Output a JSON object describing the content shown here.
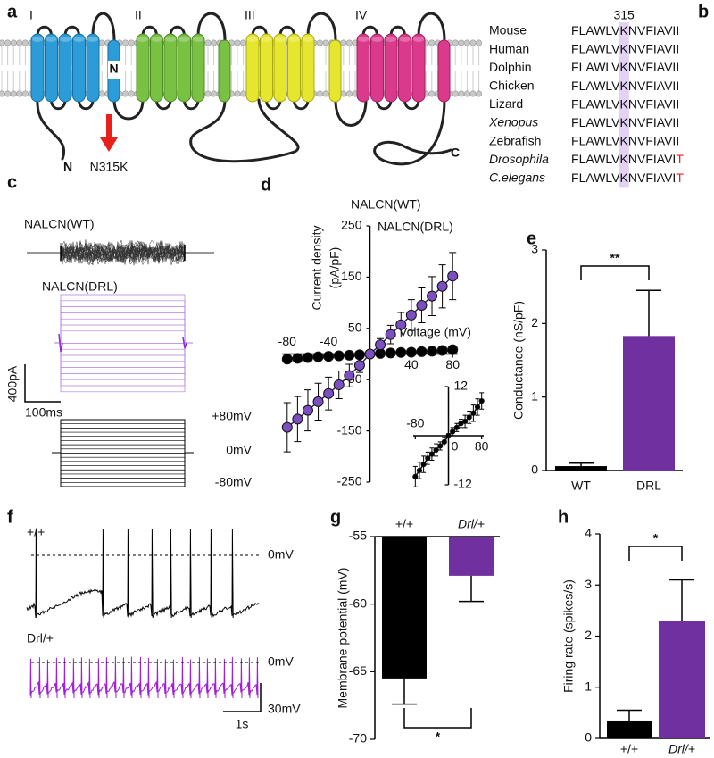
{
  "panel_letters": [
    "a",
    "b",
    "c",
    "d",
    "e",
    "f",
    "g",
    "h"
  ],
  "topology": {
    "domains": [
      "I",
      "II",
      "III",
      "IV"
    ],
    "n_terminus": "N",
    "c_terminus": "C",
    "pore_label": "N",
    "mutation": "N315K"
  },
  "alignment": {
    "position": "315",
    "rows": [
      {
        "species": "Mouse",
        "sequence": "FLAWLVKNVFIAVII"
      },
      {
        "species": "Human",
        "sequence": "FLAWLVKNVFIAVII"
      },
      {
        "species": "Dolphin",
        "sequence": "FLAWLVKNVFIAVII"
      },
      {
        "species": "Chicken",
        "sequence": "FLAWLVKNVFIAVII"
      },
      {
        "species": "Lizard",
        "sequence": "FLAWLVKNVFIAVII"
      },
      {
        "species": "Xenopus",
        "sequence": "FLAWLVKNVFIAVII",
        "italic": true
      },
      {
        "species": "Zebrafish",
        "sequence": "FLAWLVKNVFIAVII"
      },
      {
        "species": "Drosophila",
        "sequence": "FLAWLVKNVFIAVIT",
        "italic": true
      },
      {
        "species": "C.elegans",
        "sequence": "FLAWLVKNVFIAVIT",
        "italic": true
      }
    ]
  },
  "traces_c": {
    "wt_label": "NALCN(WT)",
    "drl_label": "NALCN(DRL)",
    "current_scale": "400pA",
    "time_scale": "100ms",
    "voltage_labels": [
      "+80mV",
      "0mV",
      "-80mV"
    ]
  },
  "traces_f": {
    "wt_label": "+/+",
    "drl_label": "Drl/+",
    "zero_labels": [
      "0mV",
      "0mV"
    ],
    "voltage_scale": "30mV",
    "time_scale": "1s"
  },
  "chart_data": [
    {
      "type": "line",
      "ylabel": [
        "Current density",
        "(pA/pF)"
      ],
      "xlabel": "Voltage (mV)",
      "x": [
        -80,
        -70,
        -60,
        -50,
        -40,
        -30,
        -20,
        -10,
        0,
        10,
        20,
        30,
        40,
        50,
        60,
        70,
        80
      ],
      "xlim": [
        -85,
        85
      ],
      "ylim": [
        -250,
        250
      ],
      "xticks": [
        -80,
        -40,
        40,
        80
      ],
      "yticks": [
        250,
        150,
        50,
        -50,
        -150,
        -250
      ],
      "ytick_side": "left",
      "legend": "top",
      "series": [
        {
          "name": "NALCN(WT)",
          "color": "#000000",
          "values": [
            -10,
            -8.5,
            -7,
            -5.5,
            -4.5,
            -3.5,
            -2.5,
            -1.5,
            0,
            1,
            2,
            3,
            3.5,
            4.5,
            5.5,
            7,
            8.5
          ]
        },
        {
          "name": "NALCN(DRL)",
          "color": "#7b4fc0",
          "legend_color": "#c81ed6",
          "values": [
            -143,
            -127,
            -110,
            -93,
            -77,
            -60,
            -42,
            -22,
            0,
            18,
            38,
            57,
            76,
            95,
            113,
            132,
            152
          ],
          "errors": [
            48,
            44,
            40,
            36,
            32,
            27,
            22,
            14,
            5,
            12,
            18,
            24,
            30,
            34,
            38,
            42,
            46
          ]
        }
      ]
    },
    {
      "type": "line",
      "x": [
        -80,
        -70,
        -60,
        -50,
        -40,
        -30,
        -20,
        -10,
        0,
        10,
        20,
        30,
        40,
        50,
        60,
        70,
        80
      ],
      "xlim": [
        -85,
        85
      ],
      "ylim": [
        -12,
        12
      ],
      "xticks": [
        -80,
        0,
        80
      ],
      "yticks": [
        12,
        -12
      ],
      "ytick_side": "right",
      "series": [
        {
          "color": "#000000",
          "values": [
            -10,
            -8.5,
            -7,
            -5.5,
            -4.5,
            -3.5,
            -2.5,
            -1.5,
            0,
            1,
            2,
            3,
            3.5,
            4.5,
            5.5,
            7,
            8.5
          ],
          "errors": [
            2.5,
            2,
            2,
            1.5,
            1.5,
            1.5,
            1,
            1,
            0.5,
            1,
            1,
            1,
            1.5,
            1.5,
            2,
            2,
            2
          ]
        }
      ]
    },
    {
      "type": "bar",
      "ylabel": "Conductance (nS/pF)",
      "categories": [
        "WT",
        "DRL"
      ],
      "values": [
        0.06,
        1.83
      ],
      "errors": [
        0.04,
        0.62
      ],
      "colors": [
        "#000000",
        "#7030a0"
      ],
      "ylim": [
        0,
        3
      ],
      "yticks": [
        0,
        1,
        2,
        3
      ],
      "significance": "**"
    },
    {
      "type": "bar",
      "ylabel": "Membrane potential (mV)",
      "categories": [
        "+/+",
        "Drl/+"
      ],
      "category_italic": [
        false,
        true
      ],
      "values": [
        -65.5,
        -57.9
      ],
      "errors": [
        1.9,
        1.9
      ],
      "colors": [
        "#000000",
        "#7030a0"
      ],
      "ylim": [
        -70,
        -55
      ],
      "yticks": [
        -55,
        -60,
        -65,
        -70
      ],
      "significance": "*"
    },
    {
      "type": "bar",
      "ylabel": "Firing rate (spikes/s)",
      "categories": [
        "+/+",
        "Drl/+"
      ],
      "category_italic": [
        false,
        true
      ],
      "values": [
        0.35,
        2.3
      ],
      "errors": [
        0.2,
        0.8
      ],
      "colors": [
        "#000000",
        "#7030a0"
      ],
      "ylim": [
        0,
        4
      ],
      "yticks": [
        0,
        1,
        2,
        3,
        4
      ],
      "significance": "*"
    }
  ]
}
